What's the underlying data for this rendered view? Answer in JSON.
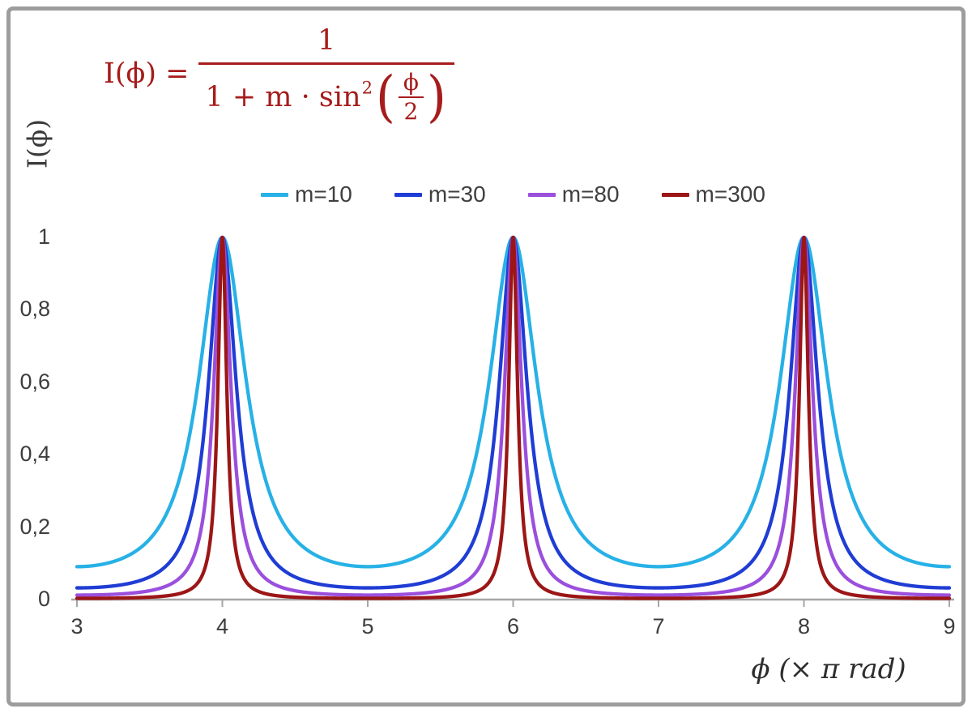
{
  "formula": {
    "color": "#a61c1c",
    "lhs": "I(ϕ) =",
    "numerator": "1",
    "den_text": "1 + m · sin",
    "den_exp": "2",
    "inner_num": "ϕ",
    "inner_den": "2"
  },
  "axes": {
    "y_title": "I(ϕ)",
    "x_title": "ϕ  (× π rad)"
  },
  "legend": {
    "position": "top-center",
    "items": [
      {
        "label": "m=10",
        "color": "#27b1e6"
      },
      {
        "label": "m=30",
        "color": "#1f3dd4"
      },
      {
        "label": "m=80",
        "color": "#9b4fdd"
      },
      {
        "label": "m=300",
        "color": "#9c1616"
      }
    ]
  },
  "chart_data": {
    "type": "line",
    "title": "",
    "formula": "I(phi) = 1 / (1 + m * sin^2(phi/2)), phi measured in units of pi rad",
    "xlabel": "ϕ (× π rad)",
    "ylabel": "I(ϕ)",
    "x_range": [
      3,
      9
    ],
    "y_range": [
      0,
      1
    ],
    "x_ticks": [
      3,
      4,
      5,
      6,
      7,
      8,
      9
    ],
    "x_tick_labels": [
      "3",
      "4",
      "5",
      "6",
      "7",
      "8",
      "9"
    ],
    "y_ticks": [
      0,
      0.2,
      0.4,
      0.6,
      0.8,
      1
    ],
    "y_tick_labels": [
      "0",
      "0,2",
      "0,4",
      "0,6",
      "0,8",
      "1"
    ],
    "grid": false,
    "legend_position": "top-center",
    "peaks_at_x": [
      4,
      6,
      8
    ],
    "peak_value": 1,
    "series": [
      {
        "name": "m=10",
        "m": 10,
        "color": "#27b1e6",
        "values_at_integer_x": {
          "3": 0.091,
          "4": 1,
          "5": 0.091,
          "6": 1,
          "7": 0.091,
          "8": 1,
          "9": 0.091
        }
      },
      {
        "name": "m=30",
        "m": 30,
        "color": "#1f3dd4",
        "values_at_integer_x": {
          "3": 0.032,
          "4": 1,
          "5": 0.032,
          "6": 1,
          "7": 0.032,
          "8": 1,
          "9": 0.032
        }
      },
      {
        "name": "m=80",
        "m": 80,
        "color": "#9b4fdd",
        "values_at_integer_x": {
          "3": 0.012,
          "4": 1,
          "5": 0.012,
          "6": 1,
          "7": 0.012,
          "8": 1,
          "9": 0.012
        }
      },
      {
        "name": "m=300",
        "m": 300,
        "color": "#9c1616",
        "values_at_integer_x": {
          "3": 0.003,
          "4": 1,
          "5": 0.003,
          "6": 1,
          "7": 0.003,
          "8": 1,
          "9": 0.003
        }
      }
    ]
  },
  "colors": {
    "axis_line": "#a6a6a6",
    "tick_text": "#3d3d3d",
    "frame_border": "#9d9d9d",
    "background": "#ffffff"
  }
}
